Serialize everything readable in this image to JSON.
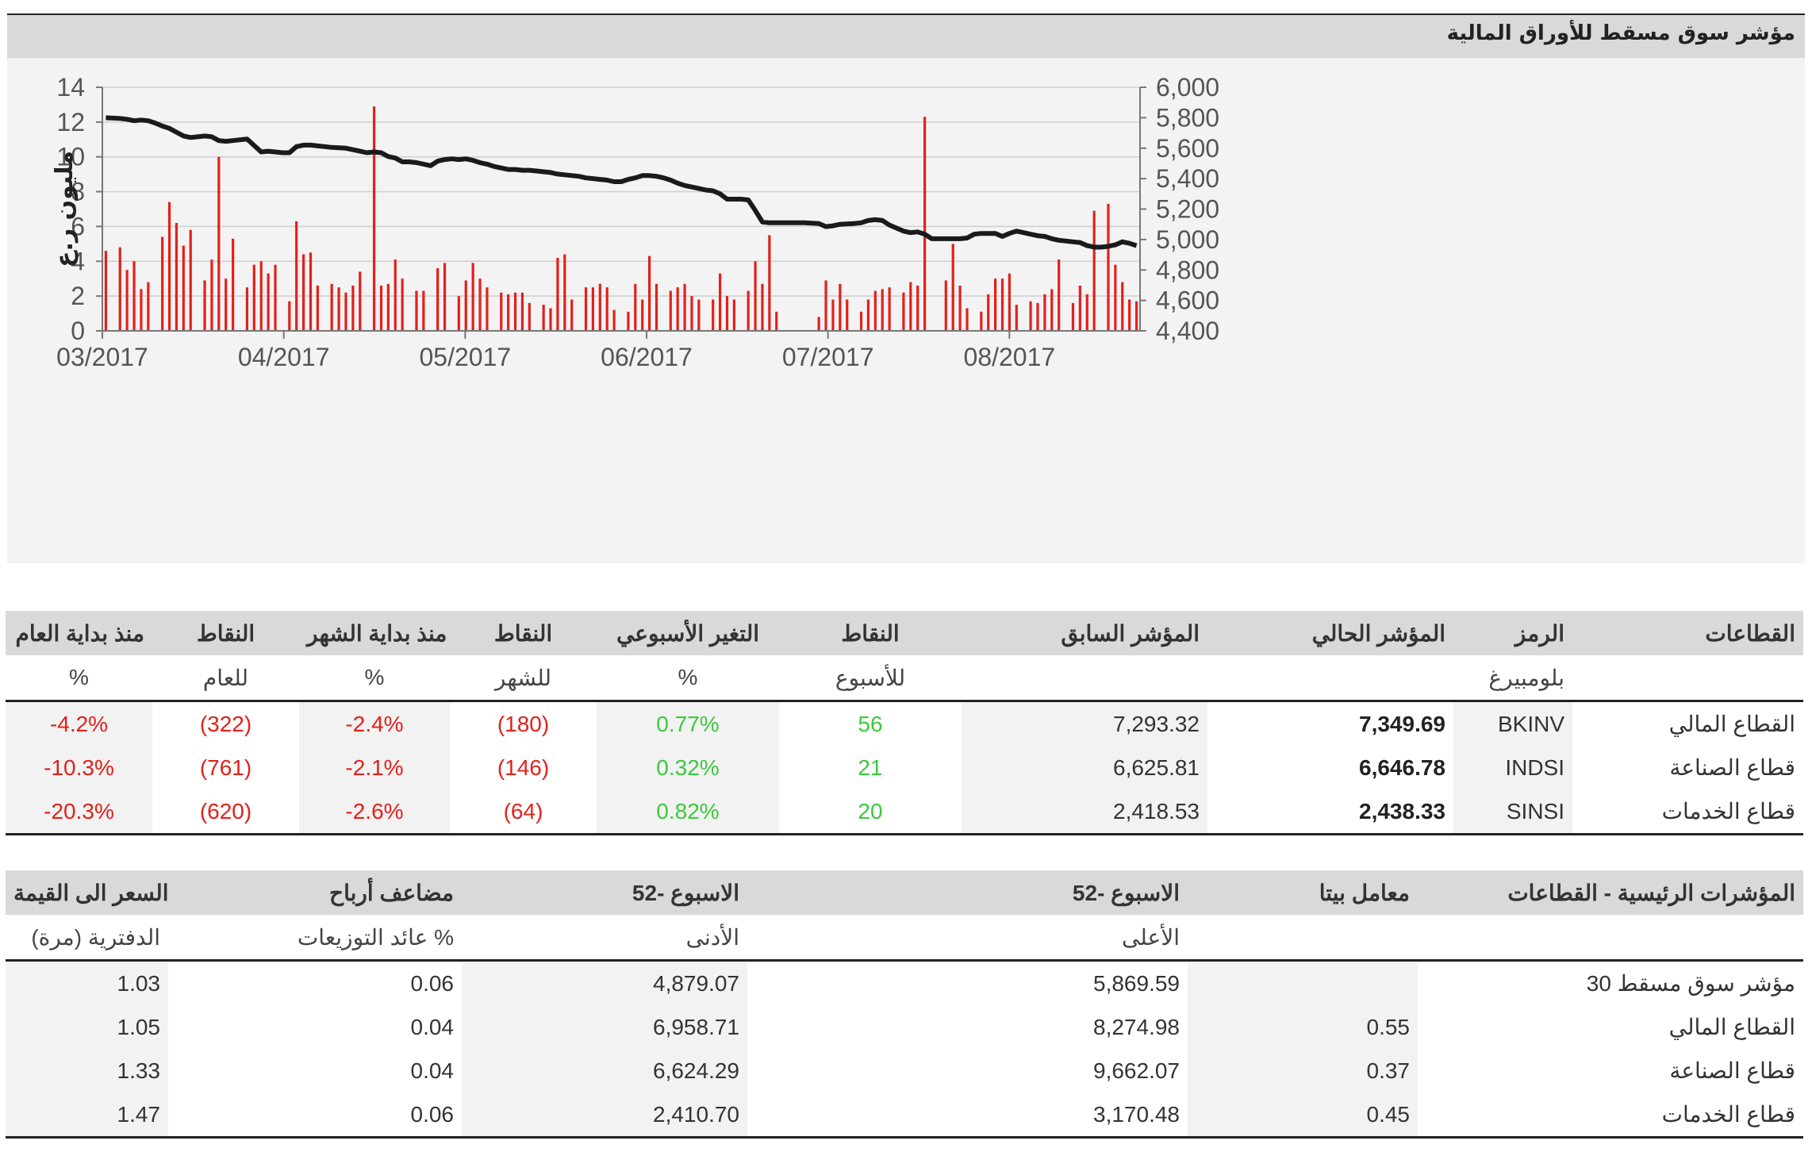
{
  "title": "مؤشر سوق مسقط للأوراق المالية",
  "colors": {
    "bar": "#e3201b",
    "line": "#1a1a1a",
    "negative": "#e3201b",
    "positive": "#3cc93c",
    "header_bg": "#d9d9d9"
  },
  "chart_data": {
    "type": "bar+line",
    "title": "مؤشر سوق مسقط للأوراق المالية",
    "ylabel_left": "مليون ر.ع",
    "left_axis": {
      "min": 0,
      "max": 14,
      "ticks": [
        "0",
        "2",
        "4",
        "6",
        "8",
        "10",
        "12",
        "14"
      ]
    },
    "right_axis": {
      "min": 4400,
      "max": 6000,
      "ticks": [
        "4,400",
        "4,600",
        "4,800",
        "5,000",
        "5,200",
        "5,400",
        "5,600",
        "5,800",
        "6,000"
      ]
    },
    "x_ticks": [
      "03/2017",
      "04/2017",
      "05/2017",
      "06/2017",
      "07/2017",
      "08/2017"
    ],
    "days": 130,
    "series": [
      {
        "name": "trading_value",
        "axis": "left",
        "kind": "bar",
        "points": [
          [
            0,
            4.6
          ],
          [
            2,
            4.8
          ],
          [
            3,
            3.5
          ],
          [
            4,
            4.0
          ],
          [
            5,
            2.4
          ],
          [
            6,
            2.8
          ],
          [
            8,
            5.4
          ],
          [
            9,
            7.4
          ],
          [
            10,
            6.2
          ],
          [
            11,
            4.9
          ],
          [
            12,
            5.8
          ],
          [
            14,
            2.9
          ],
          [
            15,
            4.1
          ],
          [
            16,
            10.0
          ],
          [
            17,
            3.0
          ],
          [
            18,
            5.3
          ],
          [
            20,
            2.5
          ],
          [
            21,
            3.8
          ],
          [
            22,
            4.0
          ],
          [
            23,
            3.3
          ],
          [
            24,
            3.8
          ],
          [
            26,
            1.7
          ],
          [
            27,
            6.3
          ],
          [
            28,
            4.4
          ],
          [
            29,
            4.5
          ],
          [
            30,
            2.6
          ],
          [
            32,
            2.7
          ],
          [
            33,
            2.5
          ],
          [
            34,
            2.2
          ],
          [
            35,
            2.6
          ],
          [
            36,
            3.4
          ],
          [
            38,
            12.9
          ],
          [
            39,
            2.6
          ],
          [
            40,
            2.7
          ],
          [
            41,
            4.1
          ],
          [
            42,
            3.0
          ],
          [
            44,
            2.3
          ],
          [
            45,
            2.3
          ],
          [
            47,
            3.6
          ],
          [
            48,
            3.9
          ],
          [
            50,
            2.0
          ],
          [
            51,
            2.9
          ],
          [
            52,
            3.9
          ],
          [
            53,
            3.0
          ],
          [
            54,
            2.5
          ],
          [
            56,
            2.2
          ],
          [
            57,
            2.1
          ],
          [
            58,
            2.2
          ],
          [
            59,
            2.2
          ],
          [
            60,
            1.6
          ],
          [
            62,
            1.5
          ],
          [
            63,
            1.3
          ],
          [
            64,
            4.2
          ],
          [
            65,
            4.4
          ],
          [
            66,
            1.8
          ],
          [
            68,
            2.5
          ],
          [
            69,
            2.5
          ],
          [
            70,
            2.7
          ],
          [
            71,
            2.5
          ],
          [
            72,
            1.2
          ],
          [
            74,
            1.1
          ],
          [
            75,
            2.7
          ],
          [
            76,
            1.8
          ],
          [
            77,
            4.3
          ],
          [
            78,
            2.7
          ],
          [
            80,
            2.3
          ],
          [
            81,
            2.5
          ],
          [
            82,
            2.7
          ],
          [
            83,
            2.0
          ],
          [
            84,
            1.8
          ],
          [
            86,
            1.8
          ],
          [
            87,
            3.3
          ],
          [
            88,
            2.0
          ],
          [
            89,
            1.8
          ],
          [
            91,
            2.3
          ],
          [
            92,
            4.0
          ],
          [
            93,
            2.7
          ],
          [
            94,
            5.5
          ],
          [
            95,
            1.1
          ],
          [
            101,
            0.8
          ],
          [
            102,
            2.9
          ],
          [
            103,
            1.8
          ],
          [
            104,
            2.7
          ],
          [
            105,
            1.8
          ],
          [
            107,
            1.1
          ],
          [
            108,
            1.8
          ],
          [
            109,
            2.3
          ],
          [
            110,
            2.4
          ],
          [
            111,
            2.5
          ],
          [
            113,
            2.2
          ],
          [
            114,
            2.8
          ],
          [
            115,
            2.6
          ],
          [
            116,
            12.3
          ],
          [
            119,
            2.9
          ],
          [
            120,
            5.0
          ],
          [
            121,
            2.6
          ],
          [
            122,
            1.3
          ],
          [
            124,
            1.1
          ],
          [
            125,
            2.1
          ],
          [
            126,
            3.0
          ],
          [
            127,
            3.0
          ],
          [
            128,
            3.3
          ],
          [
            129,
            1.5
          ],
          [
            131,
            1.7
          ],
          [
            132,
            1.6
          ],
          [
            133,
            2.1
          ],
          [
            134,
            2.4
          ],
          [
            135,
            4.1
          ],
          [
            137,
            1.6
          ],
          [
            138,
            2.6
          ],
          [
            139,
            2.1
          ],
          [
            140,
            6.9
          ],
          [
            142,
            7.3
          ],
          [
            143,
            3.8
          ],
          [
            144,
            2.8
          ],
          [
            145,
            1.8
          ],
          [
            146,
            1.7
          ]
        ]
      },
      {
        "name": "index",
        "axis": "right",
        "kind": "line",
        "points": [
          [
            0,
            5800
          ],
          [
            2,
            5795
          ],
          [
            3,
            5790
          ],
          [
            4,
            5780
          ],
          [
            5,
            5785
          ],
          [
            6,
            5780
          ],
          [
            7,
            5765
          ],
          [
            8,
            5745
          ],
          [
            9,
            5730
          ],
          [
            10,
            5705
          ],
          [
            11,
            5680
          ],
          [
            12,
            5670
          ],
          [
            13,
            5675
          ],
          [
            14,
            5680
          ],
          [
            15,
            5675
          ],
          [
            16,
            5650
          ],
          [
            17,
            5645
          ],
          [
            18,
            5650
          ],
          [
            19,
            5655
          ],
          [
            20,
            5660
          ],
          [
            22,
            5575
          ],
          [
            23,
            5580
          ],
          [
            24,
            5575
          ],
          [
            25,
            5570
          ],
          [
            26,
            5570
          ],
          [
            27,
            5610
          ],
          [
            28,
            5620
          ],
          [
            29,
            5620
          ],
          [
            30,
            5615
          ],
          [
            31,
            5610
          ],
          [
            32,
            5605
          ],
          [
            34,
            5600
          ],
          [
            36,
            5580
          ],
          [
            37,
            5570
          ],
          [
            38,
            5575
          ],
          [
            39,
            5570
          ],
          [
            40,
            5545
          ],
          [
            41,
            5535
          ],
          [
            42,
            5510
          ],
          [
            43,
            5510
          ],
          [
            44,
            5505
          ],
          [
            46,
            5485
          ],
          [
            47,
            5515
          ],
          [
            48,
            5525
          ],
          [
            49,
            5530
          ],
          [
            50,
            5525
          ],
          [
            51,
            5530
          ],
          [
            52,
            5520
          ],
          [
            53,
            5505
          ],
          [
            54,
            5495
          ],
          [
            55,
            5480
          ],
          [
            56,
            5470
          ],
          [
            57,
            5460
          ],
          [
            58,
            5460
          ],
          [
            59,
            5455
          ],
          [
            60,
            5455
          ],
          [
            61,
            5450
          ],
          [
            62,
            5445
          ],
          [
            63,
            5440
          ],
          [
            64,
            5430
          ],
          [
            65,
            5425
          ],
          [
            66,
            5420
          ],
          [
            67,
            5415
          ],
          [
            68,
            5405
          ],
          [
            69,
            5400
          ],
          [
            70,
            5395
          ],
          [
            71,
            5390
          ],
          [
            72,
            5380
          ],
          [
            73,
            5380
          ],
          [
            74,
            5395
          ],
          [
            75,
            5405
          ],
          [
            76,
            5420
          ],
          [
            77,
            5420
          ],
          [
            78,
            5415
          ],
          [
            79,
            5405
          ],
          [
            80,
            5390
          ],
          [
            81,
            5370
          ],
          [
            82,
            5355
          ],
          [
            83,
            5345
          ],
          [
            84,
            5335
          ],
          [
            85,
            5325
          ],
          [
            86,
            5320
          ],
          [
            87,
            5300
          ],
          [
            88,
            5265
          ],
          [
            89,
            5265
          ],
          [
            90,
            5265
          ],
          [
            91,
            5260
          ],
          [
            92,
            5190
          ],
          [
            93,
            5115
          ],
          [
            94,
            5110
          ],
          [
            95,
            5110
          ],
          [
            96,
            5110
          ],
          [
            97,
            5110
          ],
          [
            98,
            5110
          ],
          [
            99,
            5110
          ],
          [
            101,
            5105
          ],
          [
            102,
            5085
          ],
          [
            103,
            5090
          ],
          [
            104,
            5100
          ],
          [
            106,
            5105
          ],
          [
            107,
            5110
          ],
          [
            108,
            5125
          ],
          [
            109,
            5130
          ],
          [
            110,
            5125
          ],
          [
            111,
            5095
          ],
          [
            112,
            5075
          ],
          [
            113,
            5055
          ],
          [
            114,
            5045
          ],
          [
            115,
            5050
          ],
          [
            116,
            5035
          ],
          [
            117,
            5005
          ],
          [
            118,
            5005
          ],
          [
            119,
            5005
          ],
          [
            120,
            5005
          ],
          [
            121,
            5005
          ],
          [
            122,
            5010
          ],
          [
            123,
            5035
          ],
          [
            124,
            5040
          ],
          [
            126,
            5040
          ],
          [
            127,
            5020
          ],
          [
            128,
            5040
          ],
          [
            129,
            5055
          ],
          [
            130,
            5045
          ],
          [
            131,
            5035
          ],
          [
            132,
            5025
          ],
          [
            133,
            5020
          ],
          [
            134,
            5005
          ],
          [
            135,
            4995
          ],
          [
            136,
            4990
          ],
          [
            137,
            4985
          ],
          [
            138,
            4980
          ],
          [
            139,
            4960
          ],
          [
            140,
            4950
          ],
          [
            141,
            4950
          ],
          [
            142,
            4955
          ],
          [
            143,
            4965
          ],
          [
            144,
            4985
          ],
          [
            145,
            4975
          ],
          [
            146,
            4960
          ]
        ]
      }
    ]
  },
  "sectors_table": {
    "headers": {
      "sector": "القطاعات",
      "symbol": "الرمز",
      "current": "المؤشر الحالي",
      "previous": "المؤشر السابق",
      "week_points": "النقاط",
      "week_change": "التغير الأسبوعي",
      "month_points": "النقاط",
      "mtd": "منذ بداية الشهر",
      "year_points": "النقاط",
      "ytd": "منذ بداية العام"
    },
    "subheaders": {
      "symbol": "بلومبيرغ",
      "week_points": "للأسبوع",
      "week_change": "%",
      "month_points": "للشهر",
      "mtd": "%",
      "year_points": "للعام",
      "ytd": "%"
    },
    "rows": [
      {
        "sector": "القطاع المالي",
        "symbol": "BKINV",
        "current": "7,349.69",
        "previous": "7,293.32",
        "week_points": "56",
        "week_change": "0.77%",
        "month_points": "(180)",
        "mtd": "-2.4%",
        "year_points": "(322)",
        "ytd": "-4.2%"
      },
      {
        "sector": "قطاع الصناعة",
        "symbol": "INDSI",
        "current": "6,646.78",
        "previous": "6,625.81",
        "week_points": "21",
        "week_change": "0.32%",
        "month_points": "(146)",
        "mtd": "-2.1%",
        "year_points": "(761)",
        "ytd": "-10.3%"
      },
      {
        "sector": "قطاع الخدمات",
        "symbol": "SINSI",
        "current": "2,438.33",
        "previous": "2,418.53",
        "week_points": "20",
        "week_change": "0.82%",
        "month_points": "(64)",
        "mtd": "-2.6%",
        "year_points": "(620)",
        "ytd": "-20.3%"
      }
    ]
  },
  "indicators_table": {
    "headers": {
      "name": "المؤشرات الرئيسية - القطاعات",
      "beta": "معامل بيتا",
      "high52": "الاسبوع -52",
      "low52": "الاسبوع -52",
      "pe": "مضاعف أرباح",
      "pb": "السعر الى القيمة"
    },
    "subheaders": {
      "high52": "الأعلى",
      "low52": "الأدنى",
      "pe": "عائد التوزيعات %",
      "pb": "الدفترية (مرة)"
    },
    "rows": [
      {
        "name": "مؤشر سوق مسقط 30",
        "beta": "",
        "high52": "5,869.59",
        "low52": "4,879.07",
        "pe": "0.06",
        "pb": "1.03"
      },
      {
        "name": "القطاع المالي",
        "beta": "0.55",
        "high52": "8,274.98",
        "low52": "6,958.71",
        "pe": "0.04",
        "pb": "1.05"
      },
      {
        "name": "قطاع الصناعة",
        "beta": "0.37",
        "high52": "9,662.07",
        "low52": "6,624.29",
        "pe": "0.04",
        "pb": "1.33"
      },
      {
        "name": "قطاع الخدمات",
        "beta": "0.45",
        "high52": "3,170.48",
        "low52": "2,410.70",
        "pe": "0.06",
        "pb": "1.47"
      }
    ]
  }
}
